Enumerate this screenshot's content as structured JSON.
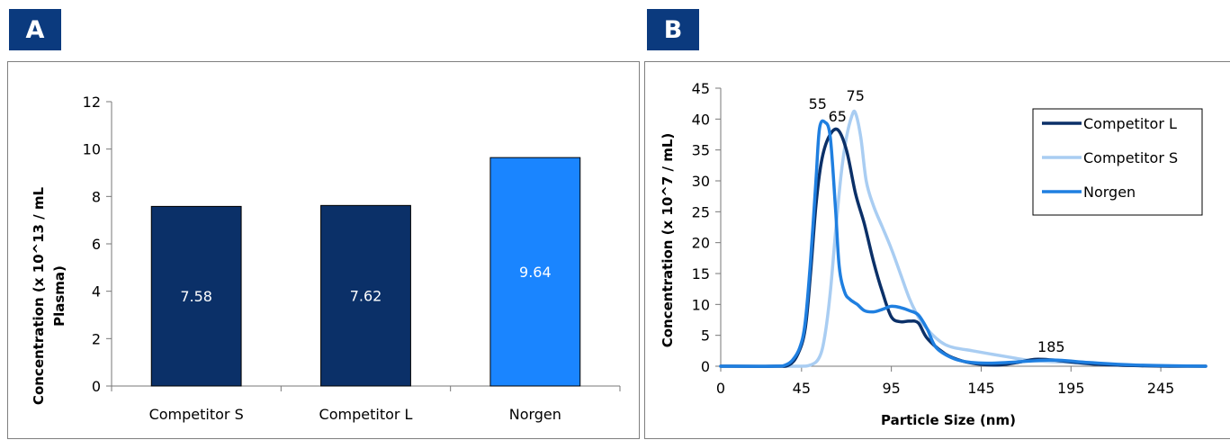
{
  "panels": {
    "a_label": "A",
    "b_label": "B"
  },
  "chart_data": [
    {
      "type": "bar",
      "categories": [
        "Competitor S",
        "Competitor L",
        "Norgen"
      ],
      "values": [
        7.58,
        7.62,
        9.64
      ],
      "data_labels": [
        "7.58",
        "7.62",
        "9.64"
      ],
      "colors": [
        "#0b3068",
        "#0b3068",
        "#1a85ff"
      ],
      "ylabel_line1": "Concentration (x 10^13 / mL",
      "ylabel_line2": "Plasma)",
      "ylim": [
        0,
        12
      ],
      "yticks": [
        "0",
        "2",
        "4",
        "6",
        "8",
        "10",
        "12"
      ],
      "grid": false,
      "legend": "none"
    },
    {
      "type": "line",
      "xlabel": "Particle Size (nm)",
      "ylabel": "Concentration (x 10^7 / mL)",
      "xlim": [
        0,
        270
      ],
      "ylim": [
        0,
        45
      ],
      "xticks": [
        0,
        45,
        95,
        145,
        195,
        245
      ],
      "xtick_labels": [
        "0",
        "45",
        "95",
        "145",
        "195",
        "245"
      ],
      "yticks": [
        0,
        5,
        10,
        15,
        20,
        25,
        30,
        35,
        40,
        45
      ],
      "ytick_labels": [
        "0",
        "5",
        "10",
        "15",
        "20",
        "25",
        "30",
        "35",
        "40",
        "45"
      ],
      "grid": false,
      "legend": "top-right",
      "series": [
        {
          "name": "Competitor L",
          "color": "#0b3068",
          "x": [
            0,
            30,
            38,
            43,
            47,
            50,
            53,
            56,
            60,
            65,
            70,
            75,
            80,
            85,
            90,
            95,
            100,
            105,
            110,
            115,
            125,
            135,
            145,
            155,
            165,
            175,
            185,
            195,
            210,
            230,
            250,
            270
          ],
          "y": [
            0,
            0,
            0.2,
            2,
            6,
            15,
            26,
            33,
            37,
            38.3,
            35,
            28,
            23,
            17,
            12,
            8,
            7.2,
            7.3,
            7,
            4.5,
            2,
            0.8,
            0.3,
            0.2,
            0.6,
            1.1,
            1,
            0.7,
            0.3,
            0.1,
            0,
            0
          ]
        },
        {
          "name": "Competitor S",
          "color": "#a9cdf2",
          "x": [
            0,
            40,
            50,
            55,
            58,
            61,
            64,
            67,
            70,
            73,
            75,
            78,
            81,
            85,
            90,
            95,
            100,
            105,
            110,
            115,
            120,
            125,
            130,
            140,
            150,
            160,
            170,
            180,
            195,
            210,
            230,
            270
          ],
          "y": [
            0,
            0,
            0.2,
            1.5,
            5,
            12,
            22,
            31,
            37,
            40.5,
            41,
            37,
            30,
            26,
            22.5,
            19,
            15,
            11,
            8,
            6,
            4.5,
            3.5,
            3,
            2.5,
            2,
            1.5,
            1,
            0.8,
            0.6,
            0.3,
            0.1,
            0
          ]
        },
        {
          "name": "Norgen",
          "color": "#1f7fe0",
          "x": [
            0,
            30,
            36,
            40,
            44,
            47,
            50,
            53,
            55,
            58,
            61,
            64,
            66,
            69,
            72,
            76,
            80,
            85,
            90,
            95,
            100,
            105,
            110,
            115,
            120,
            130,
            140,
            150,
            165,
            185,
            205,
            230,
            270
          ],
          "y": [
            0,
            0,
            0.2,
            1,
            3,
            7,
            17,
            30,
            38.5,
            39.5,
            37,
            25,
            16,
            12,
            10.8,
            10,
            9,
            8.8,
            9.2,
            9.7,
            9.5,
            9,
            8.3,
            6,
            3,
            1.2,
            0.6,
            0.5,
            0.7,
            1,
            0.6,
            0.2,
            0
          ]
        }
      ],
      "annotations": [
        {
          "text": "55",
          "x": 54,
          "y": 42.5
        },
        {
          "text": "65",
          "x": 65,
          "y": 40.5
        },
        {
          "text": "75",
          "x": 75,
          "y": 43.8
        },
        {
          "text": "185",
          "x": 184,
          "y": 3.2
        }
      ]
    }
  ]
}
